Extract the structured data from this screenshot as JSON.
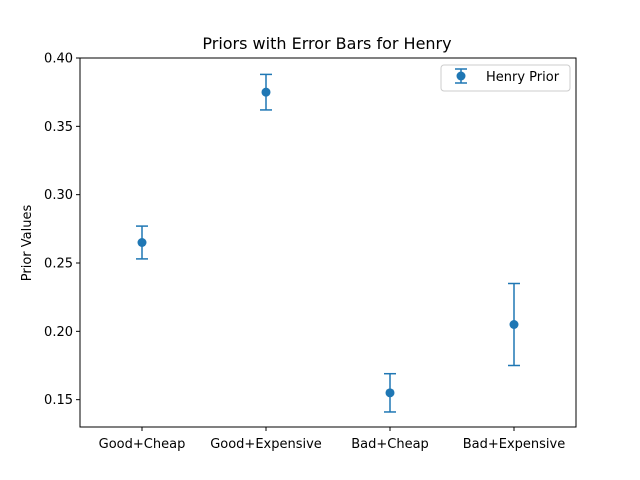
{
  "chart_data": {
    "type": "scatter",
    "title": "Priors with Error Bars for Henry",
    "xlabel": "",
    "ylabel": "Prior Values",
    "categories": [
      "Good+Cheap",
      "Good+Expensive",
      "Bad+Cheap",
      "Bad+Expensive"
    ],
    "ylim": [
      0.13,
      0.4
    ],
    "yticks": [
      0.15,
      0.2,
      0.25,
      0.3,
      0.35,
      0.4
    ],
    "ytick_labels": [
      "0.15",
      "0.20",
      "0.25",
      "0.30",
      "0.35",
      "0.40"
    ],
    "grid": false,
    "legend_position": "top-right",
    "series": [
      {
        "name": "Henry Prior",
        "color": "#1f77b4",
        "values": [
          0.265,
          0.375,
          0.155,
          0.205
        ],
        "errors": [
          0.012,
          0.013,
          0.014,
          0.03
        ]
      }
    ]
  }
}
